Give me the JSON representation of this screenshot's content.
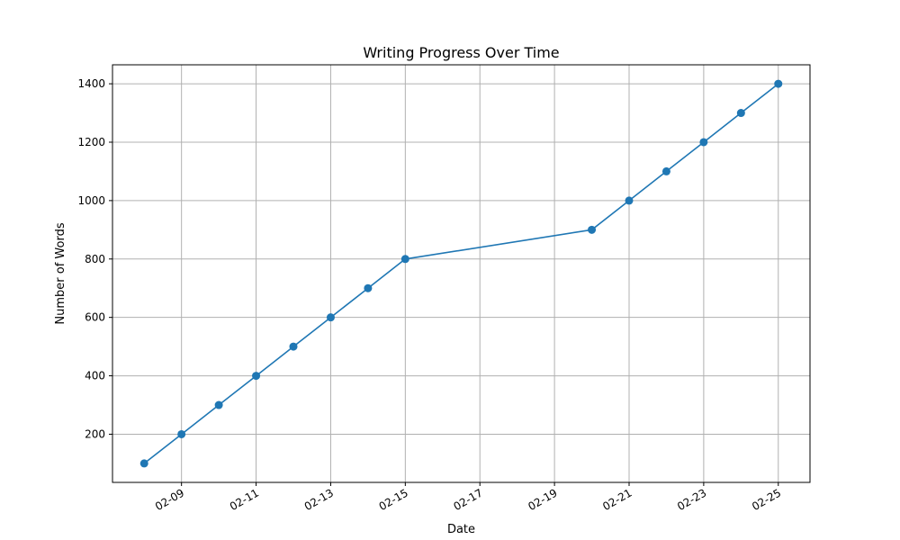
{
  "chart_data": {
    "type": "line",
    "title": "Writing Progress Over Time",
    "xlabel": "Date",
    "ylabel": "Number of Words",
    "x_tick_labels": [
      "02-09",
      "02-11",
      "02-13",
      "02-15",
      "02-17",
      "02-19",
      "02-21",
      "02-23",
      "02-25"
    ],
    "x_tick_dates": [
      "2024-02-09",
      "2024-02-11",
      "2024-02-13",
      "2024-02-15",
      "2024-02-17",
      "2024-02-19",
      "2024-02-21",
      "2024-02-23",
      "2024-02-25"
    ],
    "y_ticks": [
      200,
      400,
      600,
      800,
      1000,
      1200,
      1400
    ],
    "xlim": [
      "2024-02-07T03:36:00",
      "2024-02-25T20:24:00"
    ],
    "ylim": [
      35,
      1465
    ],
    "grid": true,
    "marker": "circle",
    "color": "#1f77b4",
    "series": [
      {
        "x": [
          "2024-02-08",
          "2024-02-09",
          "2024-02-10",
          "2024-02-11",
          "2024-02-12",
          "2024-02-13",
          "2024-02-14",
          "2024-02-15",
          "2024-02-20",
          "2024-02-21",
          "2024-02-22",
          "2024-02-23",
          "2024-02-24",
          "2024-02-25"
        ],
        "y": [
          100,
          200,
          300,
          400,
          500,
          600,
          700,
          800,
          900,
          1000,
          1100,
          1200,
          1300,
          1400
        ]
      }
    ]
  }
}
